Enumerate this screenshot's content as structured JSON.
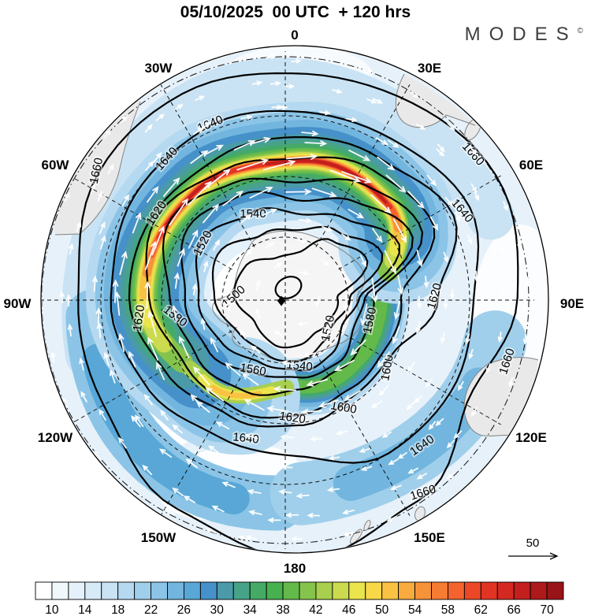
{
  "title": "05/10/2025  00 UTC  + 120 hrs",
  "brand": {
    "name": "MODES",
    "mark": "©"
  },
  "map": {
    "lon_labels": [
      "0",
      "30E",
      "60E",
      "90E",
      "120E",
      "150E",
      "180",
      "150W",
      "120W",
      "90W",
      "60W",
      "30W"
    ],
    "contour_labels": [
      "1500",
      "1520",
      "1520",
      "1540",
      "1540",
      "1560",
      "1580",
      "1580",
      "1600",
      "1600",
      "1620",
      "1620",
      "1620",
      "1620",
      "1640",
      "1640",
      "1640",
      "1640",
      "1640",
      "1660",
      "1660",
      "1660",
      "1660"
    ],
    "pole_marker": "south-pole-diamond"
  },
  "colorbar": {
    "tick_labels": [
      "10",
      "14",
      "18",
      "22",
      "26",
      "30",
      "34",
      "38",
      "42",
      "46",
      "50",
      "54",
      "58",
      "62",
      "66",
      "70"
    ],
    "colors": [
      "#ffffff",
      "#f1f8fc",
      "#e4f1fa",
      "#d7eaf7",
      "#c9e3f4",
      "#b5d9f0",
      "#a0cfeb",
      "#8bc4e6",
      "#72b6df",
      "#58a7d7",
      "#4691c9",
      "#4a9aa8",
      "#47a388",
      "#45aa66",
      "#47b04f",
      "#63ba4a",
      "#85c44c",
      "#a8cf4d",
      "#cbda4e",
      "#eae44d",
      "#f8d846",
      "#f9c242",
      "#f8ab3e",
      "#f69339",
      "#f57c33",
      "#f2632d",
      "#ec4827",
      "#e23425",
      "#d32921",
      "#c21f1e",
      "#ae191b",
      "#991418"
    ]
  },
  "ref_arrow": {
    "label": "50"
  },
  "chart_data": {
    "type": "heatmap",
    "projection": "polar-stereographic-south",
    "title": "05/10/2025 00 UTC + 120 hrs",
    "contour_levels": [
      1500,
      1520,
      1540,
      1560,
      1580,
      1600,
      1620,
      1640,
      1660
    ],
    "shading_scale": {
      "tick_values": [
        10,
        14,
        18,
        22,
        26,
        30,
        34,
        38,
        42,
        46,
        50,
        54,
        58,
        62,
        66,
        70
      ],
      "cell_step": 2,
      "range": [
        8,
        72
      ]
    },
    "vector_reference": 50,
    "longitude_labels": [
      "0",
      "30E",
      "60E",
      "90E",
      "120E",
      "150E",
      "180",
      "150W",
      "120W",
      "90W",
      "60W",
      "30W"
    ],
    "legend_position": "bottom",
    "notes": "filled shading with white vector arrows and bold black contour lines on a circular south-polar map"
  }
}
